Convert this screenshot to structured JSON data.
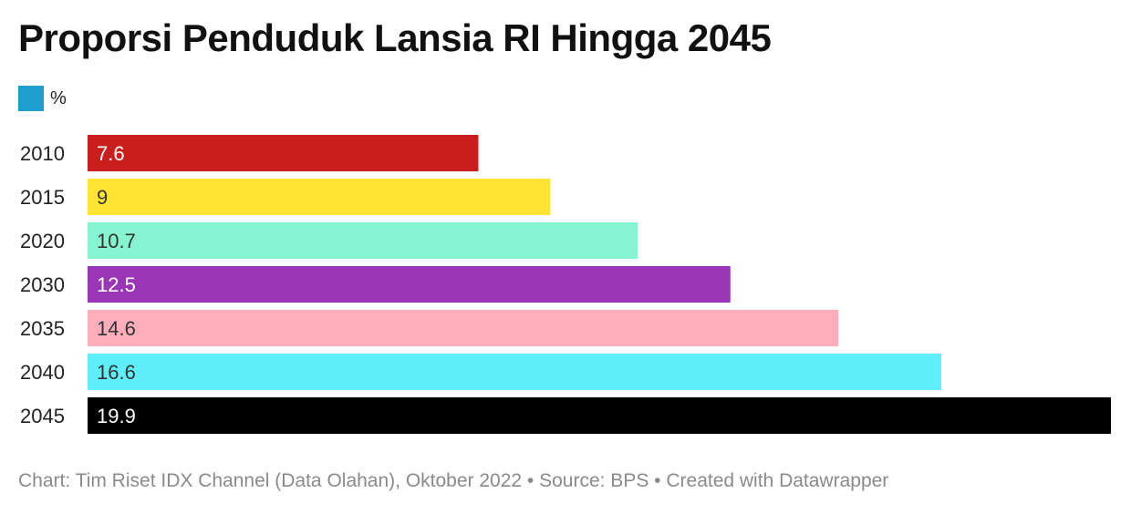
{
  "title": "Proporsi Penduduk Lansia RI Hingga 2045",
  "legend": {
    "label": "%",
    "color": "#1d9fd0"
  },
  "chart_data": {
    "type": "bar",
    "orientation": "horizontal",
    "title": "Proporsi Penduduk Lansia RI Hingga 2045",
    "categories": [
      "2010",
      "2015",
      "2020",
      "2030",
      "2035",
      "2040",
      "2045"
    ],
    "values": [
      7.6,
      9,
      10.7,
      12.5,
      14.6,
      16.6,
      19.9
    ],
    "value_labels": [
      "7.6",
      "9",
      "10.7",
      "12.5",
      "14.6",
      "16.6",
      "19.9"
    ],
    "bar_colors": [
      "#c81e1e",
      "#ffe433",
      "#84f5d0",
      "#9b35b8",
      "#ffadbb",
      "#5ef0fa",
      "#000000"
    ],
    "label_colors": [
      "#ffffff",
      "#333333",
      "#333333",
      "#ffffff",
      "#333333",
      "#333333",
      "#ffffff"
    ],
    "series": [
      {
        "name": "%",
        "values": [
          7.6,
          9,
          10.7,
          12.5,
          14.6,
          16.6,
          19.9
        ]
      }
    ],
    "xlim": [
      0,
      19.9
    ],
    "grid": false,
    "legend_position": "top-left"
  },
  "footer": "Chart: Tim Riset IDX Channel (Data Olahan), Oktober 2022 • Source: BPS • Created with Datawrapper"
}
